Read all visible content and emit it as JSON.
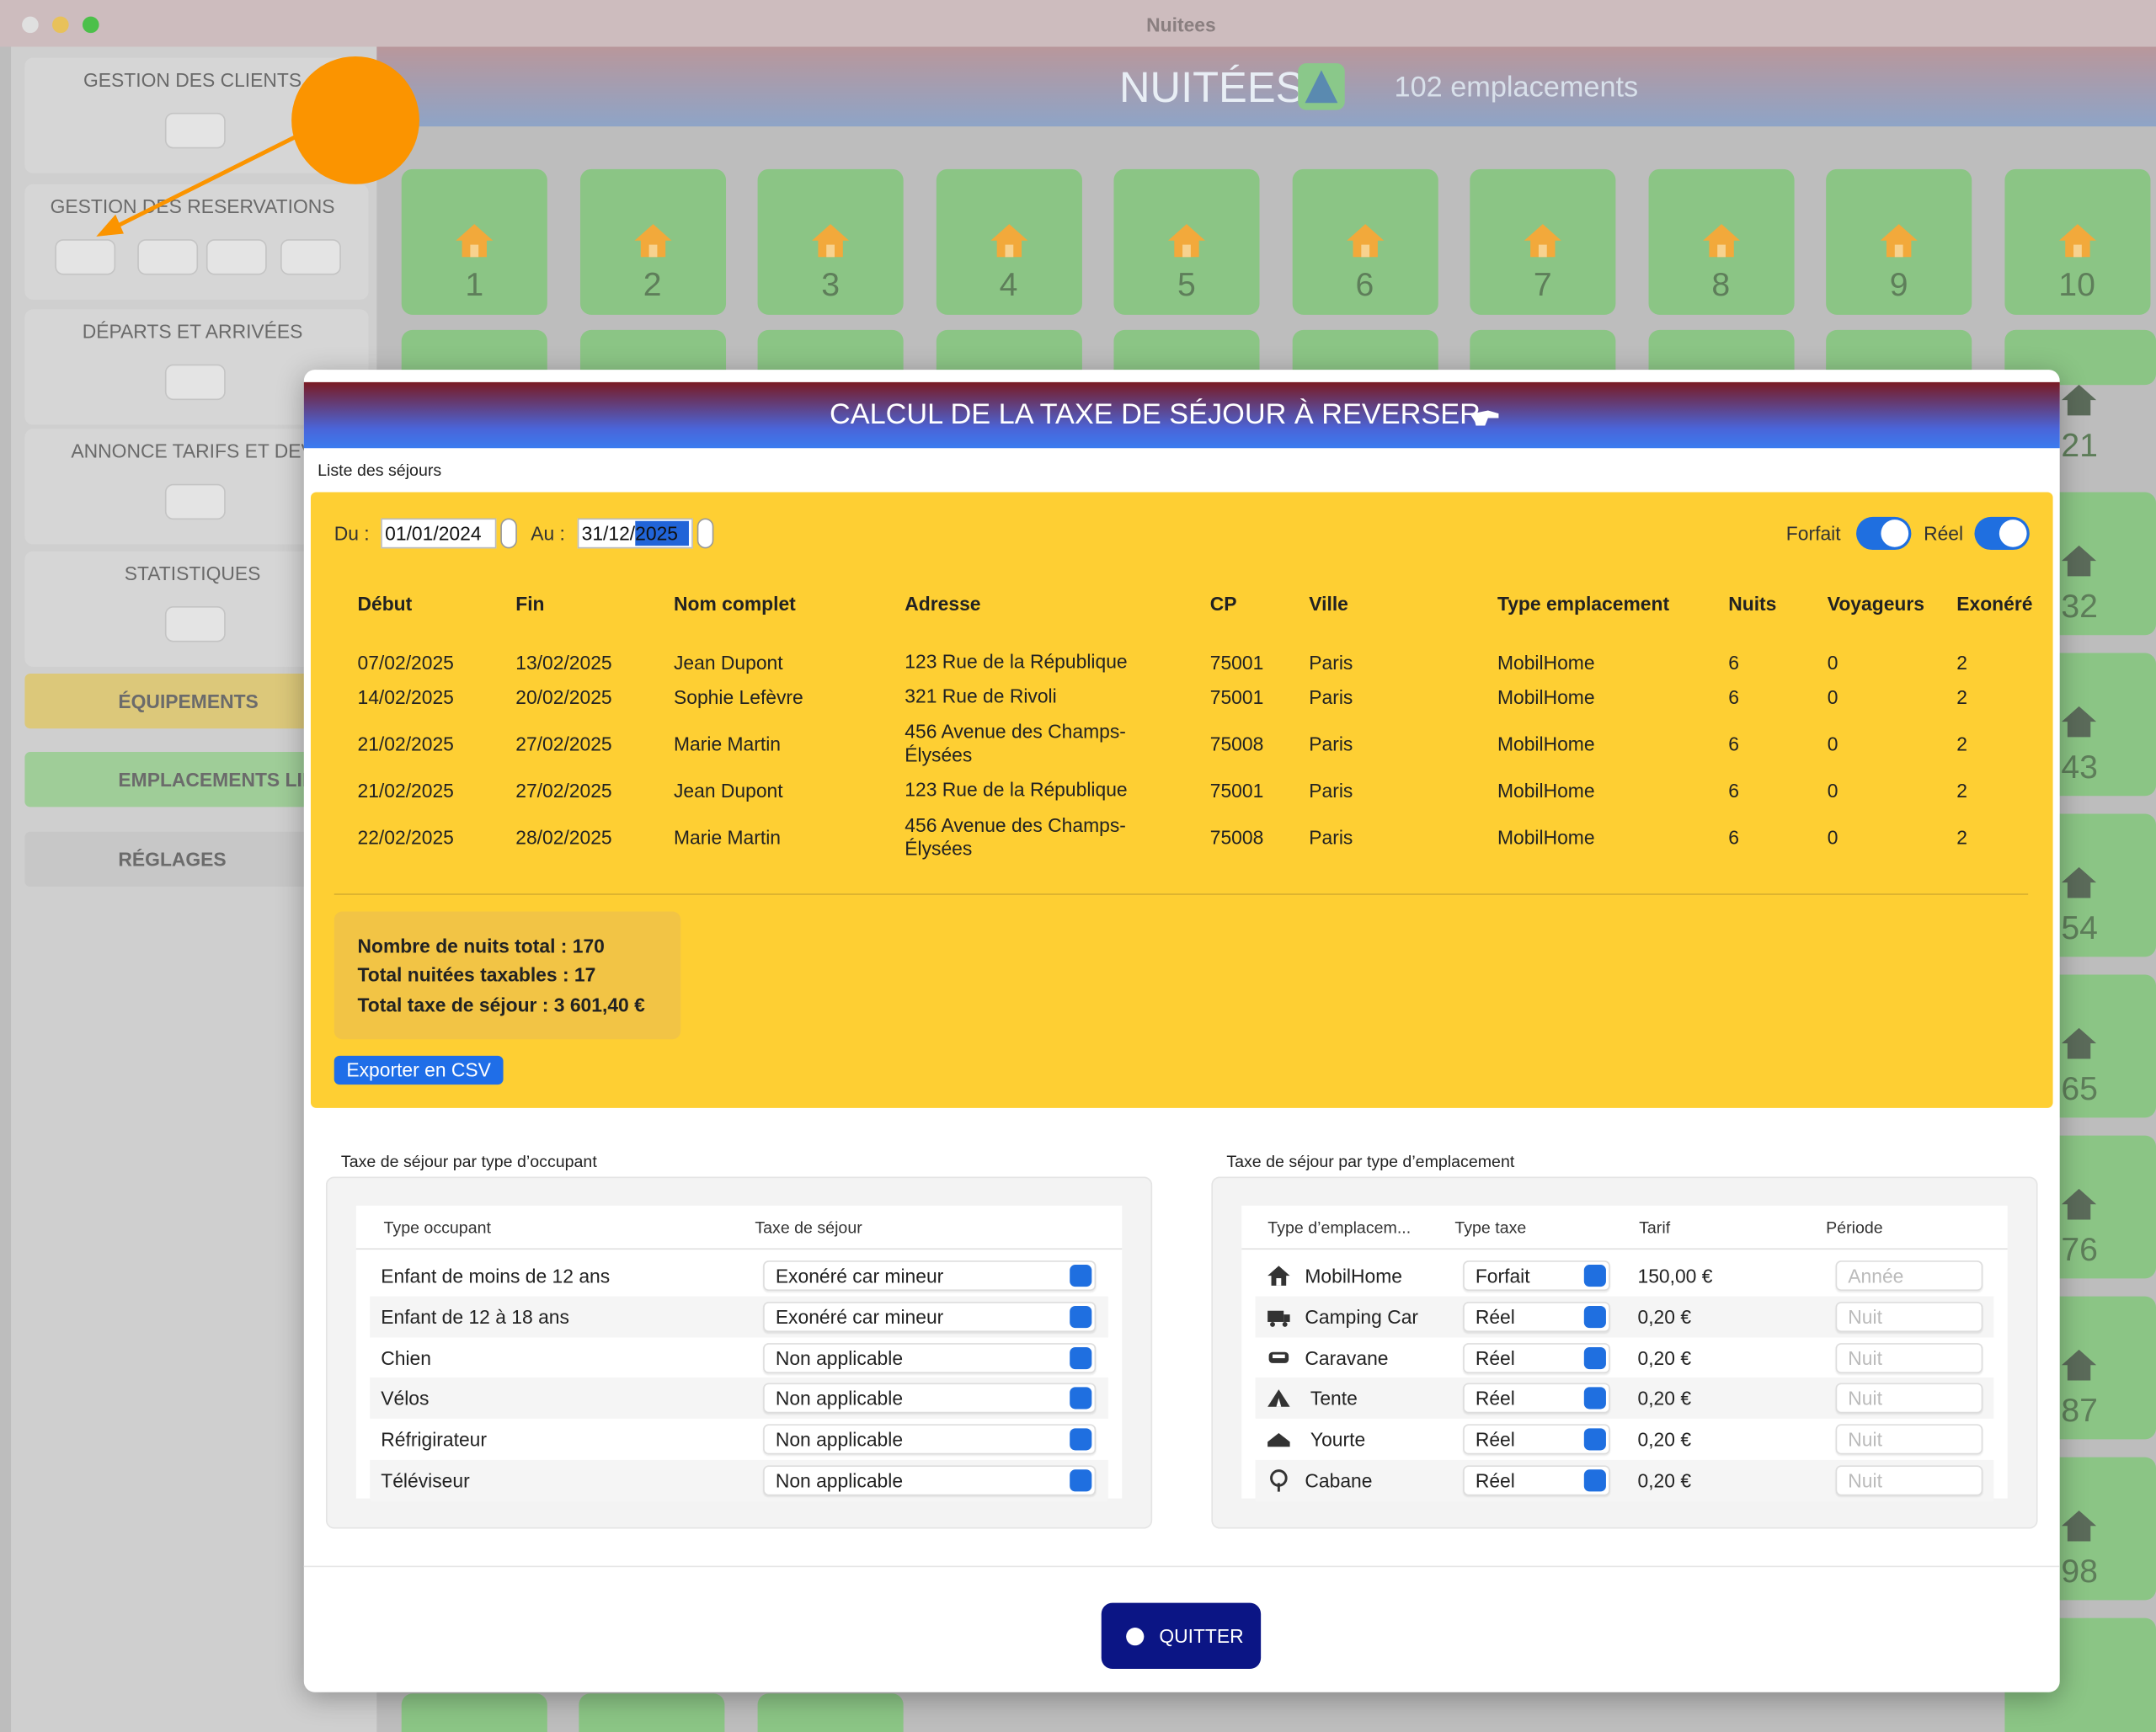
{
  "window": {
    "title": "Nuitees"
  },
  "sidebar": {
    "sections": [
      "GESTION DES CLIENTS",
      "GESTION DES RESERVATIONS",
      "DÉPARTS ET ARRIVÉES",
      "ANNONCE TARIFS ET DEV",
      "STATISTIQUES"
    ],
    "buttons": [
      "ÉQUIPEMENTS",
      "EMPLACEMENTS LIBR",
      "RÉGLAGES"
    ]
  },
  "header": {
    "title": "NUITÉES",
    "subtitle": "102 emplacements"
  },
  "tiles": {
    "top": [
      "1",
      "2",
      "3",
      "4",
      "5",
      "6",
      "7",
      "8",
      "9",
      "10"
    ],
    "right": [
      "21",
      "32",
      "43",
      "54",
      "65",
      "76",
      "87",
      "98"
    ]
  },
  "modal": {
    "title": "CALCUL DE LA TAXE DE SÉJOUR À REVERSER",
    "list_label": "Liste des séjours",
    "from_label": "Du :",
    "from_date": "01/01/2024",
    "to_label": "Au :",
    "to_date": "31/12/2025",
    "toggles": [
      {
        "label": "Forfait",
        "on": true
      },
      {
        "label": "Réel",
        "on": true
      }
    ],
    "table": {
      "columns": [
        "Début",
        "Fin",
        "Nom complet",
        "Adresse",
        "CP",
        "Ville",
        "Type emplacement",
        "Nuits",
        "Voyageurs",
        "Exonéré"
      ],
      "rows": [
        [
          "07/02/2025",
          "13/02/2025",
          "Jean Dupont",
          "123 Rue de la République",
          "75001",
          "Paris",
          "MobilHome",
          "6",
          "0",
          "2"
        ],
        [
          "14/02/2025",
          "20/02/2025",
          "Sophie Lefèvre",
          "321 Rue de Rivoli",
          "75001",
          "Paris",
          "MobilHome",
          "6",
          "0",
          "2"
        ],
        [
          "21/02/2025",
          "27/02/2025",
          "Marie Martin",
          "456 Avenue des Champs-Élysées",
          "75008",
          "Paris",
          "MobilHome",
          "6",
          "0",
          "2"
        ],
        [
          "21/02/2025",
          "27/02/2025",
          "Jean Dupont",
          "123 Rue de la République",
          "75001",
          "Paris",
          "MobilHome",
          "6",
          "0",
          "2"
        ],
        [
          "22/02/2025",
          "28/02/2025",
          "Marie Martin",
          "456 Avenue des Champs-Élysées",
          "75008",
          "Paris",
          "MobilHome",
          "6",
          "0",
          "2"
        ]
      ]
    },
    "summary": [
      "Nombre de nuits total : 170",
      "Total nuitées taxables : 17",
      "Total taxe de séjour : 3 601,40 €"
    ],
    "export_button": "Exporter en CSV",
    "occupant_panel": {
      "label": "Taxe de séjour par type d’occupant",
      "columns": [
        "Type occupant",
        "Taxe de séjour"
      ],
      "rows": [
        [
          "Enfant de moins de 12 ans",
          "Exonéré car mineur"
        ],
        [
          "Enfant de 12 à 18 ans",
          "Exonéré car mineur"
        ],
        [
          "Chien",
          "Non applicable"
        ],
        [
          "Vélos",
          "Non applicable"
        ],
        [
          "Réfrigirateur",
          "Non applicable"
        ],
        [
          "Téléviseur",
          "Non applicable"
        ]
      ]
    },
    "site_panel": {
      "label": "Taxe de séjour par type d’emplacement",
      "columns": [
        "Type d’emplacem...",
        "Type taxe",
        "Tarif",
        "Période"
      ],
      "rows": [
        [
          "MobilHome",
          "Forfait",
          "150,00 €",
          "Année"
        ],
        [
          "Camping Car",
          "Réel",
          "0,20 €",
          "Nuit"
        ],
        [
          "Caravane",
          "Réel",
          "0,20 €",
          "Nuit"
        ],
        [
          "Tente",
          "Réel",
          "0,20 €",
          "Nuit"
        ],
        [
          "Yourte",
          "Réel",
          "0,20 €",
          "Nuit"
        ],
        [
          "Cabane",
          "Réel",
          "0,20 €",
          "Nuit"
        ]
      ]
    },
    "quit_button": "QUITTER"
  }
}
